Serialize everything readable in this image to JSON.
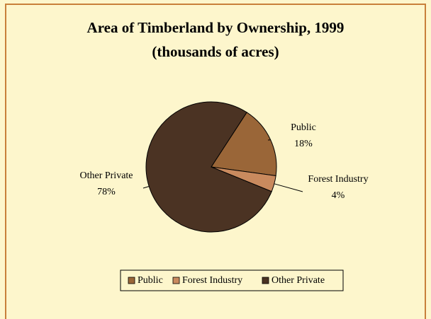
{
  "chart_data": {
    "type": "pie",
    "title": "Area of Timberland by Ownership, 1999",
    "subtitle": "(thousands of acres)",
    "categories": [
      "Public",
      "Forest Industry",
      "Other Private"
    ],
    "values": [
      18,
      4,
      78
    ],
    "value_labels": [
      "18%",
      "4%",
      "78%"
    ],
    "colors": [
      "#9a6638",
      "#c98a5e",
      "#4b3323"
    ],
    "legend": "bottom"
  }
}
